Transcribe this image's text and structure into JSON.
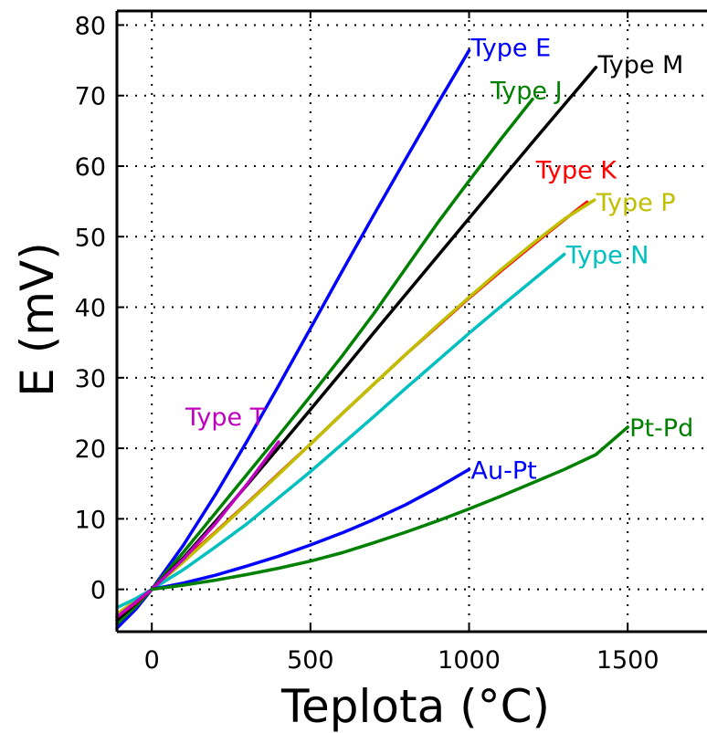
{
  "chart_data": {
    "type": "line",
    "title": "",
    "xlabel": "Teplota (°C)",
    "ylabel": "E (mV)",
    "xlim": [
      -110,
      1750
    ],
    "ylim": [
      -6,
      82
    ],
    "x_ticks": [
      0,
      500,
      1000,
      1500
    ],
    "y_ticks": [
      0,
      10,
      20,
      30,
      40,
      50,
      60,
      70,
      80
    ],
    "grid": true,
    "grid_style": "dotted",
    "legend": "inline labels at line ends",
    "series": [
      {
        "name": "Type E",
        "color": "#0000ff",
        "x": [
          -110,
          -50,
          0,
          100,
          200,
          300,
          400,
          500,
          600,
          700,
          800,
          900,
          1000
        ],
        "y": [
          -5.5,
          -2.8,
          0,
          6.3,
          13.4,
          21.0,
          28.9,
          37.0,
          45.1,
          53.1,
          61.0,
          68.8,
          76.4
        ]
      },
      {
        "name": "Type J",
        "color": "#008000",
        "x": [
          -110,
          -50,
          0,
          100,
          200,
          300,
          400,
          500,
          600,
          700,
          800,
          900,
          1000,
          1100,
          1200
        ],
        "y": [
          -4.9,
          -2.4,
          0,
          5.3,
          10.8,
          16.3,
          21.8,
          27.4,
          33.1,
          39.1,
          45.5,
          51.9,
          57.9,
          63.8,
          69.5
        ]
      },
      {
        "name": "Type M",
        "color": "#000000",
        "x": [
          -110,
          0,
          100,
          200,
          300,
          400,
          500,
          600,
          700,
          800,
          900,
          1000,
          1100,
          1200,
          1300,
          1400
        ],
        "y": [
          -4.4,
          0,
          4.5,
          9.6,
          14.8,
          20.1,
          25.5,
          30.9,
          36.4,
          41.8,
          47.2,
          52.6,
          58.0,
          63.4,
          68.7,
          74.0
        ]
      },
      {
        "name": "Type K",
        "color": "#ff0000",
        "x": [
          -110,
          -50,
          0,
          100,
          200,
          300,
          400,
          500,
          600,
          700,
          800,
          900,
          1000,
          1100,
          1200,
          1300,
          1372
        ],
        "y": [
          -3.9,
          -1.9,
          0,
          4.1,
          8.1,
          12.2,
          16.4,
          20.6,
          24.9,
          29.1,
          33.3,
          37.3,
          41.3,
          45.1,
          48.8,
          52.4,
          54.9
        ]
      },
      {
        "name": "Type P",
        "color": "#bfbf00",
        "x": [
          -110,
          0,
          100,
          200,
          300,
          400,
          500,
          600,
          700,
          800,
          900,
          1000,
          1100,
          1200,
          1300,
          1395
        ],
        "y": [
          -3.5,
          0,
          3.9,
          8.0,
          12.1,
          16.3,
          20.6,
          24.9,
          29.1,
          33.3,
          37.4,
          41.4,
          45.3,
          49.0,
          52.5,
          55.2
        ]
      },
      {
        "name": "Type N",
        "color": "#00bfbf",
        "x": [
          -110,
          -50,
          0,
          100,
          200,
          300,
          400,
          500,
          600,
          700,
          800,
          900,
          1000,
          1100,
          1200,
          1300
        ],
        "y": [
          -2.6,
          -1.3,
          0,
          2.8,
          6.0,
          9.3,
          13.0,
          16.7,
          20.6,
          24.5,
          28.5,
          32.4,
          36.3,
          40.1,
          43.8,
          47.5
        ]
      },
      {
        "name": "Type T",
        "color": "#bf00bf",
        "x": [
          -110,
          -50,
          0,
          100,
          200,
          300,
          400
        ],
        "y": [
          -3.9,
          -1.8,
          0,
          4.3,
          9.3,
          14.9,
          20.9
        ]
      },
      {
        "name": "Au-Pt",
        "color": "#0000ff",
        "x": [
          0,
          100,
          200,
          300,
          400,
          500,
          600,
          700,
          800,
          900,
          1000
        ],
        "y": [
          0,
          0.9,
          2.0,
          3.3,
          4.7,
          6.3,
          8.0,
          9.9,
          12.0,
          14.4,
          17.0
        ]
      },
      {
        "name": "Pt-Pd",
        "color": "#008000",
        "x": [
          0,
          100,
          200,
          300,
          400,
          500,
          600,
          700,
          800,
          900,
          1000,
          1100,
          1200,
          1300,
          1400,
          1500
        ],
        "y": [
          0,
          0.6,
          1.3,
          2.1,
          3.0,
          4.0,
          5.2,
          6.6,
          8.1,
          9.7,
          11.4,
          13.2,
          15.1,
          17.0,
          19.1,
          23.0
        ]
      }
    ]
  }
}
